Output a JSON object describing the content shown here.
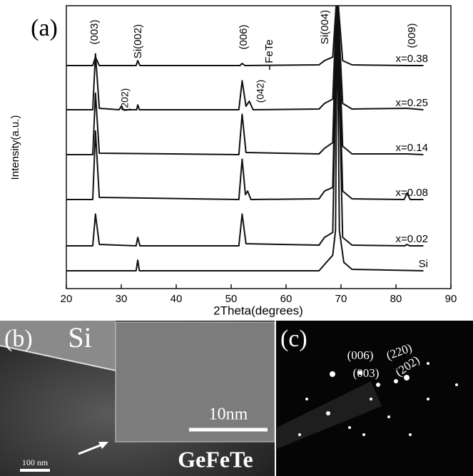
{
  "chart_data": {
    "type": "line",
    "xlabel": "2Theta(degrees)",
    "ylabel": "Intensity(a.u.)",
    "xlim": [
      15,
      90
    ],
    "xticks": [
      20,
      30,
      40,
      50,
      60,
      70,
      80,
      90
    ],
    "ylim": [
      0,
      400
    ],
    "color": "#111111",
    "annotations": [
      "(a)",
      "(003)",
      "Si(002)",
      "(006)",
      "FeTe",
      "Si(004)",
      "(009)",
      "(202)",
      "(042)"
    ],
    "series": [
      {
        "name": "Si",
        "x": [
          20,
          32.7,
          33,
          33.3,
          66,
          67,
          68.5,
          69,
          69.3,
          69.7,
          70.5,
          72,
          85
        ],
        "values": [
          3,
          3,
          18,
          3,
          3,
          12,
          25,
          60,
          380,
          60,
          15,
          5,
          3
        ]
      },
      {
        "name": "x=0.02",
        "x": [
          20,
          24.8,
          25.3,
          26,
          32.7,
          33,
          33.4,
          51.4,
          52,
          52.7,
          66,
          67,
          68.5,
          69.3,
          70.3,
          72,
          81.6,
          82,
          82.5,
          85
        ],
        "values": [
          3,
          3,
          48,
          5,
          3,
          15,
          3,
          3,
          48,
          6,
          4,
          15,
          22,
          340,
          15,
          4,
          3,
          5,
          3,
          3
        ]
      },
      {
        "name": "x=0.08",
        "x": [
          20,
          24.8,
          25.3,
          26,
          51.4,
          52,
          52.6,
          53,
          53.6,
          66,
          67,
          68.5,
          69.3,
          70.3,
          72,
          81.5,
          82,
          82.6,
          85
        ],
        "values": [
          3,
          3,
          100,
          6,
          3,
          60,
          10,
          15,
          3,
          4,
          15,
          20,
          300,
          15,
          4,
          3,
          12,
          3,
          3
        ]
      },
      {
        "name": "x=0.14",
        "x": [
          20,
          24.8,
          25.3,
          26,
          51.4,
          52,
          52.7,
          66,
          67,
          68.5,
          69.3,
          70.3,
          72,
          82,
          85
        ],
        "values": [
          3,
          3,
          90,
          5,
          3,
          60,
          6,
          4,
          12,
          20,
          240,
          15,
          4,
          4,
          3
        ]
      },
      {
        "name": "x=0.25",
        "x": [
          20,
          24.8,
          25.3,
          26,
          29.6,
          30,
          30.4,
          32.8,
          33,
          33.3,
          51.4,
          52,
          52.7,
          53.3,
          54,
          66,
          67,
          68.5,
          69.3,
          70.3,
          72,
          82,
          85
        ],
        "values": [
          3,
          3,
          82,
          5,
          3,
          8,
          3,
          3,
          10,
          3,
          3,
          44,
          8,
          15,
          3,
          4,
          12,
          18,
          170,
          12,
          4,
          5,
          3
        ]
      },
      {
        "name": "x=0.38",
        "x": [
          20,
          24.8,
          25.3,
          26,
          32.7,
          33,
          33.4,
          51.6,
          52,
          52.5,
          66,
          67,
          68.5,
          69.3,
          70.3,
          72,
          82,
          85
        ],
        "values": [
          3,
          3,
          15,
          3,
          3,
          10,
          3,
          3,
          6,
          3,
          4,
          10,
          15,
          110,
          10,
          4,
          3,
          3
        ]
      }
    ]
  },
  "panel_b": {
    "label": "(b)",
    "region": "Si",
    "scale_inset": "10nm",
    "scale": "100 nm",
    "material": "GeFeTe"
  },
  "panel_c": {
    "label": "(c)",
    "spots": [
      "(006)",
      "(220)",
      "(202)",
      "(003)"
    ]
  }
}
